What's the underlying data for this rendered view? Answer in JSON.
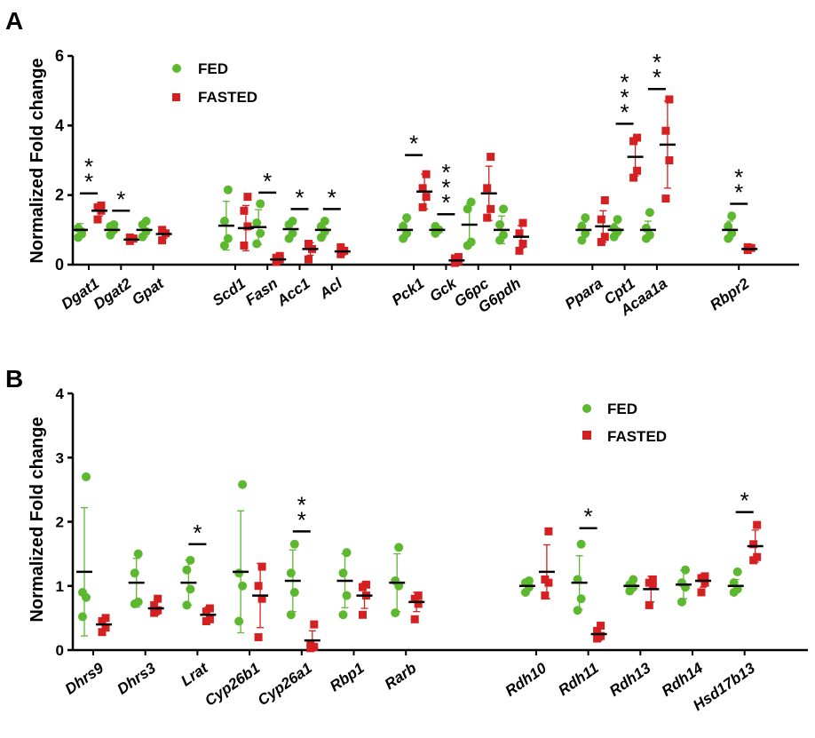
{
  "colors": {
    "fed": "#5cb82e",
    "fasted": "#d42020",
    "axis": "#000000",
    "bar": "#000000"
  },
  "chart_data": [
    {
      "panel_letter": "A",
      "type": "scatter",
      "ylabel": "Normalized Fold change",
      "ylim": [
        0,
        6
      ],
      "yticks": [
        0,
        2,
        4,
        6
      ],
      "legend": {
        "position": "top-left",
        "entries": [
          "FED",
          "FASTED"
        ]
      },
      "series": [
        {
          "name": "FED"
        },
        {
          "name": "FASTED"
        }
      ],
      "genes": [
        {
          "label": "Dgat1",
          "group": 0,
          "fed": {
            "mean": 1.0,
            "sd": 0.18,
            "points": [
              0.78,
              0.95,
              1.05,
              0.88
            ]
          },
          "fasted": {
            "mean": 1.55,
            "sd": 0.15,
            "points": [
              1.3,
              1.55,
              1.65,
              1.7
            ]
          },
          "sig": "**",
          "sig_level": 2.05
        },
        {
          "label": "Dgat2",
          "group": 0,
          "fed": {
            "mean": 1.0,
            "sd": 0.12,
            "points": [
              0.85,
              1.0,
              1.1,
              1.15
            ]
          },
          "fasted": {
            "mean": 0.72,
            "sd": 0.06,
            "points": [
              0.68,
              0.75,
              0.78
            ]
          },
          "sig": "*",
          "sig_level": 1.55
        },
        {
          "label": "Gpat",
          "group": 0,
          "fed": {
            "mean": 1.0,
            "sd": 0.2,
            "points": [
              0.8,
              0.95,
              1.15,
              1.25
            ]
          },
          "fasted": {
            "mean": 0.88,
            "sd": 0.12,
            "points": [
              0.7,
              0.9,
              1.0
            ]
          },
          "sig": "",
          "sig_level": null
        },
        {
          "label": "Scd1",
          "group": 1,
          "fed": {
            "mean": 1.12,
            "sd": 0.7,
            "points": [
              0.55,
              0.75,
              1.25,
              2.15
            ]
          },
          "fasted": {
            "mean": 1.05,
            "sd": 0.65,
            "points": [
              0.55,
              1.1,
              1.55,
              1.95
            ]
          },
          "sig": "",
          "sig_level": null
        },
        {
          "label": "Fasn",
          "group": 1,
          "fed": {
            "mean": 1.08,
            "sd": 0.5,
            "points": [
              0.6,
              0.9,
              1.2,
              1.75
            ]
          },
          "fasted": {
            "mean": 0.15,
            "sd": 0.08,
            "points": [
              0.08,
              0.15,
              0.2,
              0.25
            ]
          },
          "sig": "*",
          "sig_level": 2.07
        },
        {
          "label": "Acc1",
          "group": 1,
          "fed": {
            "mean": 1.02,
            "sd": 0.22,
            "points": [
              0.75,
              0.9,
              1.15,
              1.25
            ]
          },
          "fasted": {
            "mean": 0.45,
            "sd": 0.18,
            "points": [
              0.15,
              0.45,
              0.6
            ]
          },
          "sig": "*",
          "sig_level": 1.6
        },
        {
          "label": "Acl",
          "group": 1,
          "fed": {
            "mean": 1.0,
            "sd": 0.2,
            "points": [
              0.78,
              0.95,
              1.1,
              1.25
            ]
          },
          "fasted": {
            "mean": 0.38,
            "sd": 0.1,
            "points": [
              0.3,
              0.4,
              0.5
            ]
          },
          "sig": "*",
          "sig_level": 1.6
        },
        {
          "label": "Pck1",
          "group": 2,
          "fed": {
            "mean": 1.0,
            "sd": 0.22,
            "points": [
              0.75,
              0.9,
              1.1,
              1.35
            ]
          },
          "fasted": {
            "mean": 2.1,
            "sd": 0.5,
            "points": [
              1.65,
              1.95,
              2.2,
              2.6
            ]
          },
          "sig": "*",
          "sig_level": 3.15
        },
        {
          "label": "Gck",
          "group": 2,
          "fed": {
            "mean": 1.0,
            "sd": 0.08,
            "points": [
              0.9,
              1.0,
              1.1
            ]
          },
          "fasted": {
            "mean": 0.12,
            "sd": 0.05,
            "points": [
              0.05,
              0.1,
              0.18,
              0.22
            ]
          },
          "sig": "***",
          "sig_level": 1.45
        },
        {
          "label": "G6pc",
          "group": 2,
          "fed": {
            "mean": 1.15,
            "sd": 0.6,
            "points": [
              0.55,
              0.65,
              1.6,
              1.8
            ]
          },
          "fasted": {
            "mean": 2.05,
            "sd": 0.78,
            "points": [
              1.35,
              1.6,
              2.2,
              3.1
            ]
          },
          "sig": "",
          "sig_level": null
        },
        {
          "label": "G6pdh",
          "group": 2,
          "fed": {
            "mean": 1.0,
            "sd": 0.4,
            "points": [
              0.7,
              0.85,
              1.15,
              1.6
            ]
          },
          "fasted": {
            "mean": 0.8,
            "sd": 0.32,
            "points": [
              0.4,
              0.6,
              0.9,
              1.2
            ]
          },
          "sig": "",
          "sig_level": null
        },
        {
          "label": "Ppara",
          "group": 3,
          "fed": {
            "mean": 1.0,
            "sd": 0.22,
            "points": [
              0.7,
              0.9,
              1.1,
              1.35
            ]
          },
          "fasted": {
            "mean": 1.1,
            "sd": 0.45,
            "points": [
              0.65,
              0.8,
              1.3,
              1.85
            ]
          },
          "sig": "",
          "sig_level": null
        },
        {
          "label": "Cpt1",
          "group": 3,
          "fed": {
            "mean": 1.0,
            "sd": 0.18,
            "points": [
              0.8,
              0.95,
              1.05,
              1.3
            ]
          },
          "fasted": {
            "mean": 3.1,
            "sd": 0.55,
            "points": [
              2.5,
              2.7,
              3.55,
              3.65
            ]
          },
          "sig": "***",
          "sig_level": 4.05
        },
        {
          "label": "Acaa1a",
          "group": 3,
          "fed": {
            "mean": 1.0,
            "sd": 0.25,
            "points": [
              0.75,
              0.85,
              1.05,
              1.5
            ]
          },
          "fasted": {
            "mean": 3.45,
            "sd": 1.25,
            "points": [
              1.9,
              3.0,
              3.85,
              4.75
            ]
          },
          "sig": "**",
          "sig_level": 5.05
        },
        {
          "label": "Rbpr2",
          "group": 4,
          "fed": {
            "mean": 1.0,
            "sd": 0.25,
            "points": [
              0.75,
              0.9,
              1.1,
              1.4
            ]
          },
          "fasted": {
            "mean": 0.45,
            "sd": 0.05,
            "points": [
              0.42,
              0.48,
              0.5
            ]
          },
          "sig": "**",
          "sig_level": 1.75
        }
      ]
    },
    {
      "panel_letter": "B",
      "type": "scatter",
      "ylabel": "Normalized Fold change",
      "ylim": [
        0,
        4
      ],
      "yticks": [
        0,
        1,
        2,
        3,
        4
      ],
      "legend": {
        "position": "top-right",
        "entries": [
          "FED",
          "FASTED"
        ]
      },
      "series": [
        {
          "name": "FED"
        },
        {
          "name": "FASTED"
        }
      ],
      "genes": [
        {
          "label": "Dhrs9",
          "group": 0,
          "fed": {
            "mean": 1.22,
            "sd": 1.0,
            "points": [
              0.52,
              0.82,
              0.9,
              2.7
            ]
          },
          "fasted": {
            "mean": 0.4,
            "sd": 0.1,
            "points": [
              0.28,
              0.35,
              0.45,
              0.5
            ]
          },
          "sig": "",
          "sig_level": null
        },
        {
          "label": "Dhrs3",
          "group": 0,
          "fed": {
            "mean": 1.05,
            "sd": 0.38,
            "points": [
              0.72,
              0.75,
              1.2,
              1.5
            ]
          },
          "fasted": {
            "mean": 0.65,
            "sd": 0.1,
            "points": [
              0.58,
              0.62,
              0.7,
              0.8
            ]
          },
          "sig": "",
          "sig_level": null
        },
        {
          "label": "Lrat",
          "group": 0,
          "fed": {
            "mean": 1.05,
            "sd": 0.35,
            "points": [
              0.7,
              0.95,
              1.25,
              1.4
            ]
          },
          "fasted": {
            "mean": 0.55,
            "sd": 0.12,
            "points": [
              0.45,
              0.48,
              0.6,
              0.65
            ]
          },
          "sig": "*",
          "sig_level": 1.65
        },
        {
          "label": "Cyp26b1",
          "group": 0,
          "fed": {
            "mean": 1.22,
            "sd": 0.95,
            "points": [
              0.45,
              1.0,
              1.2,
              2.58
            ]
          },
          "fasted": {
            "mean": 0.85,
            "sd": 0.5,
            "points": [
              0.2,
              0.8,
              1.0,
              1.3
            ]
          },
          "sig": "",
          "sig_level": null
        },
        {
          "label": "Cyp26a1",
          "group": 0,
          "fed": {
            "mean": 1.08,
            "sd": 0.48,
            "points": [
              0.55,
              0.9,
              1.2,
              1.65
            ]
          },
          "fasted": {
            "mean": 0.15,
            "sd": 0.15,
            "points": [
              0.03,
              0.05,
              0.1,
              0.4
            ]
          },
          "sig": "**",
          "sig_level": 1.85
        },
        {
          "label": "Rbp1",
          "group": 0,
          "fed": {
            "mean": 1.08,
            "sd": 0.42,
            "points": [
              0.55,
              0.85,
              1.2,
              1.52
            ]
          },
          "fasted": {
            "mean": 0.85,
            "sd": 0.2,
            "points": [
              0.55,
              0.85,
              0.98,
              1.02
            ]
          },
          "sig": "",
          "sig_level": null
        },
        {
          "label": "Rarb",
          "group": 0,
          "fed": {
            "mean": 1.05,
            "sd": 0.45,
            "points": [
              0.58,
              1.0,
              1.08,
              1.6
            ]
          },
          "fasted": {
            "mean": 0.75,
            "sd": 0.15,
            "points": [
              0.48,
              0.72,
              0.8,
              0.85
            ]
          },
          "sig": "",
          "sig_level": null
        },
        {
          "label": "Rdh10",
          "group": 1,
          "fed": {
            "mean": 1.0,
            "sd": 0.08,
            "points": [
              0.9,
              0.98,
              1.05,
              1.08
            ]
          },
          "fasted": {
            "mean": 1.22,
            "sd": 0.42,
            "points": [
              0.85,
              1.05,
              1.1,
              1.85
            ]
          },
          "sig": "",
          "sig_level": null
        },
        {
          "label": "Rdh11",
          "group": 1,
          "fed": {
            "mean": 1.05,
            "sd": 0.42,
            "points": [
              0.62,
              0.8,
              1.1,
              1.65
            ]
          },
          "fasted": {
            "mean": 0.25,
            "sd": 0.1,
            "points": [
              0.18,
              0.22,
              0.3,
              0.38
            ]
          },
          "sig": "*",
          "sig_level": 1.9
        },
        {
          "label": "Rdh13",
          "group": 1,
          "fed": {
            "mean": 1.0,
            "sd": 0.08,
            "points": [
              0.92,
              0.98,
              1.02,
              1.1
            ]
          },
          "fasted": {
            "mean": 0.95,
            "sd": 0.2,
            "points": [
              0.7,
              1.0,
              1.05,
              1.1
            ]
          },
          "sig": "",
          "sig_level": null
        },
        {
          "label": "Rdh14",
          "group": 1,
          "fed": {
            "mean": 1.02,
            "sd": 0.22,
            "points": [
              0.75,
              0.98,
              1.05,
              1.25
            ]
          },
          "fasted": {
            "mean": 1.08,
            "sd": 0.1,
            "points": [
              0.9,
              1.05,
              1.12,
              1.15
            ]
          },
          "sig": "",
          "sig_level": null
        },
        {
          "label": "Hsd17b13",
          "group": 1,
          "fed": {
            "mean": 1.0,
            "sd": 0.1,
            "points": [
              0.9,
              0.95,
              1.05,
              1.22
            ]
          },
          "fasted": {
            "mean": 1.62,
            "sd": 0.25,
            "points": [
              1.4,
              1.45,
              1.65,
              1.95
            ]
          },
          "sig": "*",
          "sig_level": 2.15
        }
      ]
    }
  ]
}
